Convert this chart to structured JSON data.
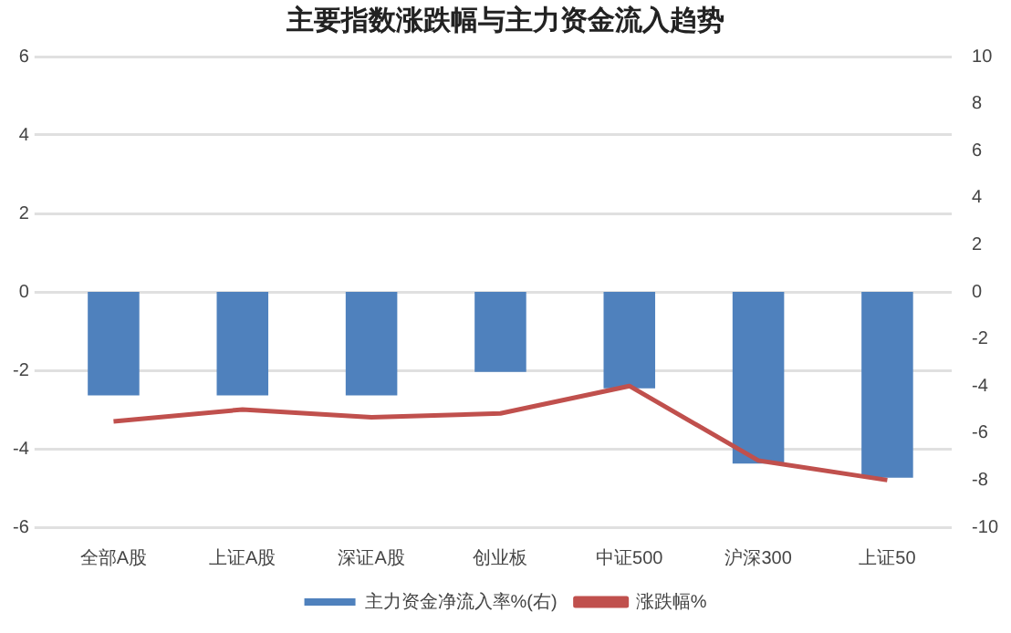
{
  "chart_data": {
    "type": "bar",
    "title": "主要指数涨跌幅与主力资金流入趋势",
    "categories": [
      "全部A股",
      "上证A股",
      "深证A股",
      "创业板",
      "中证500",
      "沪深300",
      "上证50"
    ],
    "series": [
      {
        "name": "主力资金净流入率%(右)",
        "axis": "y2",
        "color": "#4f81bd",
        "values": [
          -4.4,
          -4.4,
          -4.4,
          -3.4,
          -4.1,
          -7.3,
          -7.9
        ]
      },
      {
        "name": "涨跌幅%",
        "type": "line",
        "axis": "y",
        "color": "#c0504d",
        "values": [
          -3.3,
          -3.0,
          -3.2,
          -3.1,
          -2.4,
          -4.3,
          -4.8
        ]
      }
    ],
    "ylim": [
      -6,
      6
    ],
    "yticks": [
      -6,
      -4,
      -2,
      0,
      2,
      4,
      6
    ],
    "y2lim": [
      -10,
      10
    ],
    "y2ticks": [
      -10,
      -8,
      -6,
      -4,
      -2,
      0,
      2,
      4,
      6,
      8,
      10
    ],
    "grid": "y",
    "legend": "bottom",
    "marker": "none",
    "line_style": "solid"
  }
}
